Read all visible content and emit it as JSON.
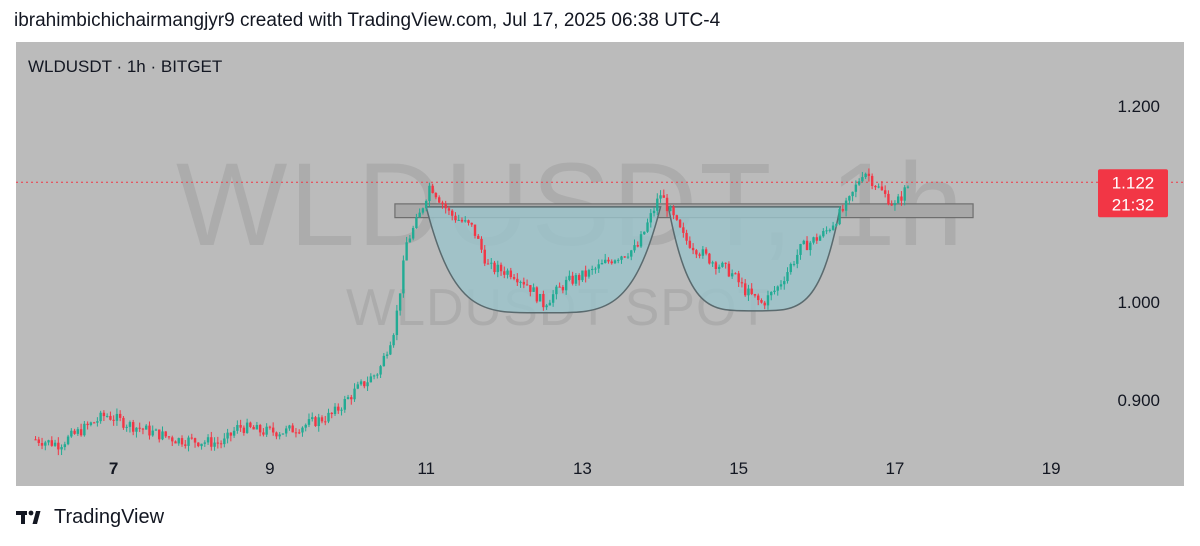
{
  "header": {
    "credit": "ibrahimbichichairmangjyr9 created with TradingView.com, Jul 17, 2025 06:38 UTC-4"
  },
  "chart": {
    "symbol_label": "WLDUSDT · 1h · BITGET",
    "watermark_main": "WLDUSDT, 1h",
    "watermark_sub": "WLDUSDT SPOT",
    "last_price": "1.122",
    "countdown": "21:32"
  },
  "footer": {
    "brand": "TradingView"
  },
  "colors": {
    "background": "#bbbbbb",
    "up": "#22ab94",
    "down": "#f23645",
    "price_line": "#f23645",
    "pattern_fill": "#9bc4cc",
    "resistance_fill": "#a8a8a8"
  },
  "chart_data": {
    "type": "candlestick",
    "y_ticks": [
      "1.200",
      "1.000",
      "0.900"
    ],
    "x_ticks": [
      "7",
      "9",
      "11",
      "13",
      "15",
      "17",
      "19"
    ],
    "ylim": [
      0.842,
      1.265
    ],
    "xlim": [
      5.75,
      20.7
    ],
    "last_price": 1.122,
    "pattern": "double cup and handle",
    "resistance_zone": {
      "x": [
        10.6,
        18.0
      ],
      "y": [
        1.086,
        1.1
      ]
    },
    "cups": [
      {
        "x_start": 11.0,
        "x_end": 14.0,
        "bottom": 0.989
      },
      {
        "x_start": 14.1,
        "x_end": 16.3,
        "bottom": 0.991
      }
    ],
    "close_path": [
      [
        6.0,
        0.86
      ],
      [
        6.3,
        0.855
      ],
      [
        6.6,
        0.87
      ],
      [
        6.9,
        0.885
      ],
      [
        7.2,
        0.875
      ],
      [
        7.5,
        0.867
      ],
      [
        7.8,
        0.86
      ],
      [
        8.1,
        0.858
      ],
      [
        8.4,
        0.856
      ],
      [
        8.6,
        0.873
      ],
      [
        8.9,
        0.868
      ],
      [
        9.2,
        0.868
      ],
      [
        9.5,
        0.876
      ],
      [
        9.8,
        0.885
      ],
      [
        10.1,
        0.91
      ],
      [
        10.4,
        0.93
      ],
      [
        10.6,
        0.975
      ],
      [
        10.75,
        1.06
      ],
      [
        10.9,
        1.085
      ],
      [
        11.05,
        1.12
      ],
      [
        11.3,
        1.09
      ],
      [
        11.6,
        1.075
      ],
      [
        11.8,
        1.035
      ],
      [
        12.1,
        1.03
      ],
      [
        12.3,
        1.018
      ],
      [
        12.5,
        0.998
      ],
      [
        12.8,
        1.02
      ],
      [
        13.1,
        1.03
      ],
      [
        13.4,
        1.045
      ],
      [
        13.7,
        1.055
      ],
      [
        14.0,
        1.11
      ],
      [
        14.3,
        1.065
      ],
      [
        14.6,
        1.045
      ],
      [
        14.9,
        1.03
      ],
      [
        15.1,
        1.01
      ],
      [
        15.3,
        0.998
      ],
      [
        15.5,
        1.015
      ],
      [
        15.8,
        1.055
      ],
      [
        16.1,
        1.07
      ],
      [
        16.4,
        1.1
      ],
      [
        16.6,
        1.135
      ],
      [
        16.8,
        1.115
      ],
      [
        17.0,
        1.098
      ],
      [
        17.2,
        1.122
      ]
    ]
  }
}
